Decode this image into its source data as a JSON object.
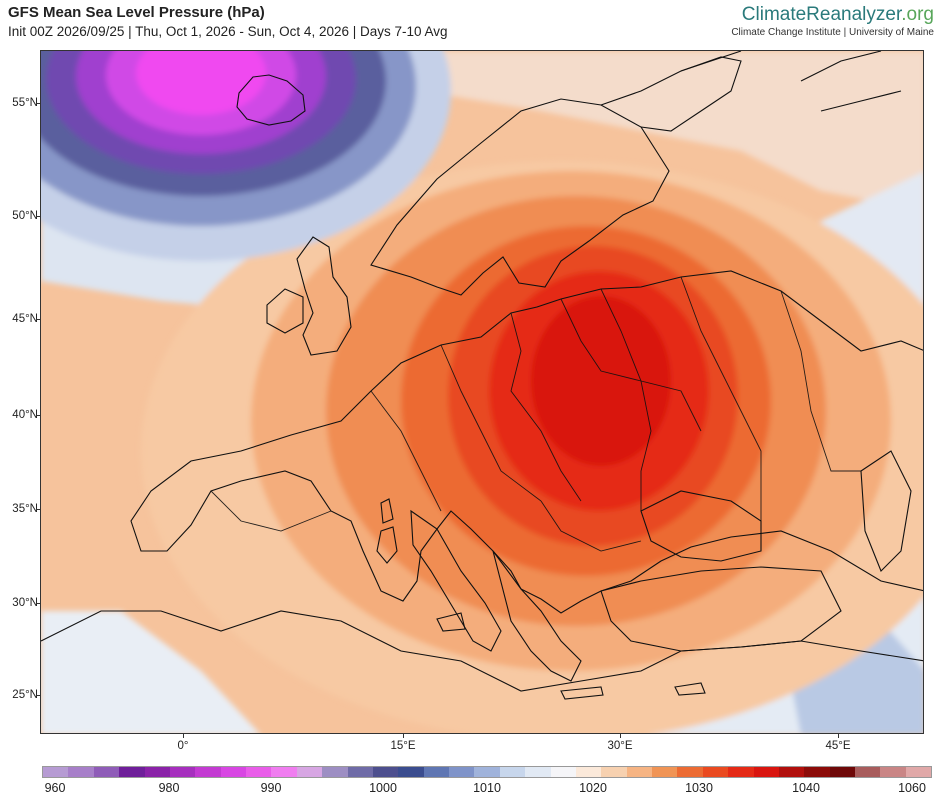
{
  "header": {
    "title": "GFS Mean Sea Level Pressure (hPa)",
    "subtitle": "Init 00Z 2026/09/25 | Thu, Oct 1, 2026 - Sun, Oct 4, 2026 | Days 7-10 Avg"
  },
  "brand": {
    "name_part1": "ClimateReanalyzer",
    "name_part2": ".org",
    "subtitle": "Climate Change Institute | University of Maine"
  },
  "map": {
    "lat_labels": [
      "55°N",
      "50°N",
      "45°N",
      "40°N",
      "35°N",
      "30°N",
      "25°N"
    ],
    "lon_labels": [
      "0°",
      "15°E",
      "30°E",
      "45°E"
    ],
    "colors": {
      "low_core": "#f048f0",
      "low_mid": "#9d3fd3",
      "low_outer": "#5a5a98",
      "blue": "#7f93c9",
      "light_blue": "#c7d6ec",
      "neutral": "#f3f3f6",
      "peach": "#f7d1b0",
      "light_orange": "#f6b483",
      "orange": "#f09455",
      "deep_orange": "#ec6b33",
      "red_orange": "#ea4a20",
      "red": "#e52a16",
      "core": "#d9150f"
    }
  },
  "colorbar": {
    "labels": [
      "960",
      "980",
      "990",
      "1000",
      "1010",
      "1020",
      "1030",
      "1040",
      "1060"
    ],
    "colors": [
      "#b69bd3",
      "#a77fc9",
      "#8f5cb8",
      "#6f1f9a",
      "#8a22a8",
      "#a62fbe",
      "#c33ad2",
      "#d846e3",
      "#e95de9",
      "#f07df0",
      "#d7a6e3",
      "#9d8ec3",
      "#6f6ba7",
      "#4d4f8e",
      "#3b4d8f",
      "#5f76b3",
      "#7f93c9",
      "#a0b3db",
      "#c7d6ec",
      "#e1e9f4",
      "#f5f5f8",
      "#fbe9da",
      "#f7d1b0",
      "#f6b483",
      "#f09455",
      "#ec6b33",
      "#ea4a20",
      "#e52a16",
      "#d9150f",
      "#b10f0c",
      "#8c0b08",
      "#6e0808",
      "#a85c5c",
      "#c98585",
      "#e0a8a8"
    ]
  }
}
